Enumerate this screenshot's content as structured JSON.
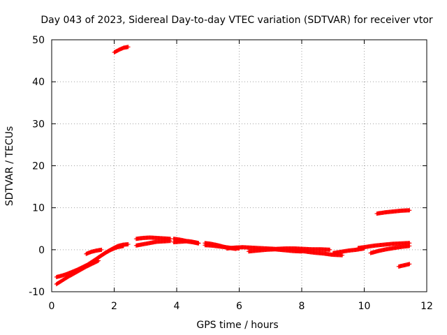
{
  "chart_data": {
    "type": "scatter",
    "title": "Day 043 of 2023, Sidereal Day-to-day VTEC variation (SDTVAR) for receiver vtor",
    "xlabel": "GPS time / hours",
    "ylabel": "SDTVAR / TECUs",
    "xlim": [
      0,
      12
    ],
    "ylim": [
      -10,
      50
    ],
    "xticks": [
      0,
      2,
      4,
      6,
      8,
      10,
      12
    ],
    "yticks": [
      -10,
      0,
      10,
      20,
      30,
      40,
      50
    ],
    "grid": true,
    "marker": "plus",
    "series": [
      {
        "name": "SDTVAR",
        "color": "#ff0000",
        "segments": [
          {
            "x0": 0.15,
            "x1": 2.45,
            "y": [
              -6.5,
              -6.2,
              -5.8,
              -5.3,
              -4.8,
              -4.2,
              -3.6,
              -2.8,
              -2.0,
              -1.2,
              -0.4,
              0.3,
              0.9,
              1.2,
              1.3
            ]
          },
          {
            "x0": 0.15,
            "x1": 1.5,
            "y": [
              -8.2,
              -7.3,
              -6.4,
              -5.6,
              -4.8,
              -4.0,
              -3.3,
              -2.6
            ]
          },
          {
            "x0": 1.1,
            "x1": 1.6,
            "y": [
              -1.0,
              -0.5,
              -0.2,
              0.0
            ]
          },
          {
            "x0": 1.3,
            "x1": 2.3,
            "y": [
              -3.0,
              -1.8,
              -0.8,
              0.0,
              0.6,
              0.9
            ]
          },
          {
            "x0": 2.0,
            "x1": 2.45,
            "y": [
              47.0,
              47.6,
              48.1,
              48.3
            ]
          },
          {
            "x0": 2.7,
            "x1": 3.8,
            "y": [
              2.6,
              2.8,
              2.9,
              2.8,
              2.7,
              2.6
            ]
          },
          {
            "x0": 2.7,
            "x1": 3.8,
            "y": [
              1.0,
              1.3,
              1.6,
              1.9,
              2.0,
              2.1
            ]
          },
          {
            "x0": 3.9,
            "x1": 4.7,
            "y": [
              2.6,
              2.4,
              2.1,
              1.9,
              1.6
            ]
          },
          {
            "x0": 3.9,
            "x1": 4.7,
            "y": [
              1.8,
              1.9,
              2.0,
              1.8,
              1.5
            ]
          },
          {
            "x0": 4.9,
            "x1": 5.9,
            "y": [
              1.6,
              1.4,
              1.1,
              0.7,
              0.4,
              0.2
            ]
          },
          {
            "x0": 4.9,
            "x1": 6.0,
            "y": [
              1.1,
              1.0,
              0.8,
              0.6,
              0.4,
              0.3
            ]
          },
          {
            "x0": 5.6,
            "x1": 7.4,
            "y": [
              0.3,
              0.5,
              0.6,
              0.5,
              0.4,
              0.3,
              0.2,
              0.0
            ]
          },
          {
            "x0": 6.3,
            "x1": 8.0,
            "y": [
              -0.4,
              -0.2,
              0.0,
              0.1,
              -0.1,
              -0.3,
              -0.4
            ]
          },
          {
            "x0": 7.2,
            "x1": 8.9,
            "y": [
              0.2,
              0.3,
              0.3,
              0.2,
              0.1,
              0.1,
              0.0
            ]
          },
          {
            "x0": 7.8,
            "x1": 9.3,
            "y": [
              -0.2,
              -0.4,
              -0.7,
              -0.9,
              -1.2,
              -1.3
            ]
          },
          {
            "x0": 9.0,
            "x1": 10.0,
            "y": [
              -0.8,
              -0.5,
              -0.2,
              0.0,
              0.3
            ]
          },
          {
            "x0": 9.8,
            "x1": 11.45,
            "y": [
              0.4,
              0.7,
              1.0,
              1.2,
              1.4,
              1.5,
              1.6
            ]
          },
          {
            "x0": 10.2,
            "x1": 11.45,
            "y": [
              -0.8,
              -0.3,
              0.1,
              0.4,
              0.7,
              0.9
            ]
          },
          {
            "x0": 10.4,
            "x1": 11.45,
            "y": [
              8.6,
              8.9,
              9.1,
              9.3,
              9.4
            ]
          },
          {
            "x0": 11.1,
            "x1": 11.45,
            "y": [
              -4.0,
              -3.7,
              -3.4
            ]
          }
        ]
      }
    ]
  }
}
